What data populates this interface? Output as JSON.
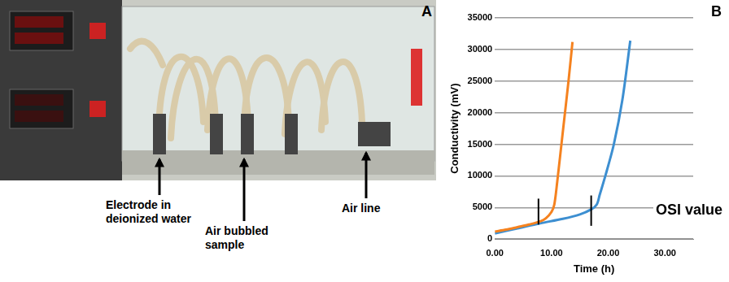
{
  "panel_a": {
    "letter": "A",
    "labels": [
      "Electrode in deionized water",
      "Air bubbled sample",
      "Air line"
    ]
  },
  "chart_data": {
    "type": "line",
    "panel_letter": "B",
    "x_label": "Time (h)",
    "y_label": "Conductivity (mV)",
    "xlim": [
      0,
      35
    ],
    "xticks": [
      {
        "value": 0,
        "label": "0.00"
      },
      {
        "value": 10,
        "label": "10.00"
      },
      {
        "value": 20,
        "label": "20.00"
      },
      {
        "value": 30,
        "label": "30.00"
      }
    ],
    "ylim": [
      0,
      35000
    ],
    "yticks": [
      0,
      5000,
      10000,
      15000,
      20000,
      25000,
      30000,
      35000
    ],
    "grid": true,
    "series": [
      {
        "color": "#f5821f",
        "x": [
          0,
          2,
          4,
          6,
          8,
          9,
          10,
          10.5,
          11,
          12,
          13,
          13.7
        ],
        "values": [
          1200,
          1500,
          1900,
          2300,
          2800,
          3300,
          4300,
          5500,
          9000,
          17000,
          25000,
          31200
        ]
      },
      {
        "color": "#3d8fd1",
        "x": [
          0,
          4,
          8,
          12,
          15,
          17,
          18,
          18.5,
          19.5,
          21,
          22.5,
          23.9
        ],
        "values": [
          900,
          1700,
          2500,
          3200,
          3900,
          4700,
          5500,
          7000,
          10000,
          15000,
          22000,
          31400
        ]
      }
    ],
    "osi_marks": [
      {
        "x": 7.7,
        "ymin": 2300,
        "ymax": 6400
      },
      {
        "x": 17,
        "ymin": 2100,
        "ymax": 6900
      }
    ],
    "annotation": "OSI value"
  }
}
